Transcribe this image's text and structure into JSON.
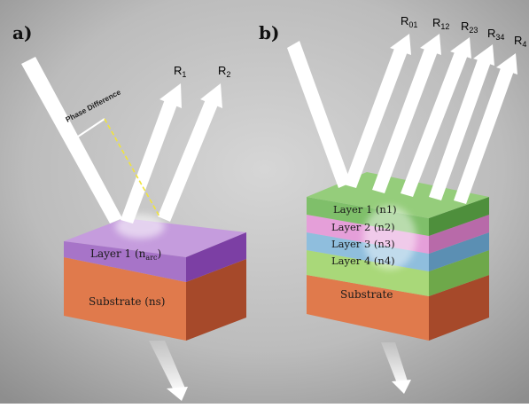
{
  "panel_a": {
    "label": "a)",
    "phase_difference": "Phase Difference",
    "rays": [
      {
        "base": "R",
        "sub": "1"
      },
      {
        "base": "R",
        "sub": "2"
      }
    ],
    "layer": {
      "prefix": "Layer 1 (n",
      "sub": "arc",
      "suffix": ")"
    },
    "substrate": "Substrate (ns)"
  },
  "panel_b": {
    "label": "b)",
    "rays": [
      {
        "base": "R",
        "sub": "01"
      },
      {
        "base": "R",
        "sub": "12"
      },
      {
        "base": "R",
        "sub": "23"
      },
      {
        "base": "R",
        "sub": "34"
      },
      {
        "base": "R",
        "sub": "4"
      }
    ],
    "layers": [
      "Layer 1 (n1)",
      "Layer 2 (n2)",
      "Layer 3 (n3)",
      "Layer 4 (n4)"
    ],
    "substrate": "Substrate"
  },
  "colors": {
    "background": "#b4b4b4",
    "layer_arc": "#a774c8",
    "substrate": "#e07a4c",
    "layer1": "#7fbf6a",
    "layer2": "#e59fd9",
    "layer3": "#8fbedd",
    "layer4": "#a9d879",
    "phase_line": "#f1e43a"
  }
}
